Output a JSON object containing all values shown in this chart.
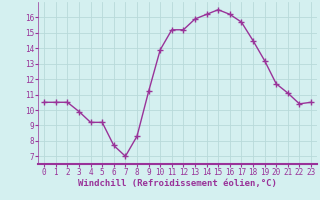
{
  "x": [
    0,
    1,
    2,
    3,
    4,
    5,
    6,
    7,
    8,
    9,
    10,
    11,
    12,
    13,
    14,
    15,
    16,
    17,
    18,
    19,
    20,
    21,
    22,
    23
  ],
  "y": [
    10.5,
    10.5,
    10.5,
    9.9,
    9.2,
    9.2,
    7.7,
    7.0,
    8.3,
    11.2,
    13.9,
    15.2,
    15.2,
    15.9,
    16.2,
    16.5,
    16.2,
    15.7,
    14.5,
    13.2,
    11.7,
    11.1,
    10.4,
    10.5
  ],
  "line_color": "#993399",
  "marker": "+",
  "marker_size": 4,
  "linewidth": 1.0,
  "bg_color": "#d4f0f0",
  "grid_color": "#b8dada",
  "axis_line_color": "#993399",
  "xlabel": "Windchill (Refroidissement éolien,°C)",
  "xlabel_fontsize": 6.5,
  "xlabel_color": "#993399",
  "tick_color": "#993399",
  "tick_fontsize": 5.5,
  "ylim": [
    6.5,
    17.0
  ],
  "yticks": [
    7,
    8,
    9,
    10,
    11,
    12,
    13,
    14,
    15,
    16
  ],
  "xlim": [
    -0.5,
    23.5
  ],
  "xticks": [
    0,
    1,
    2,
    3,
    4,
    5,
    6,
    7,
    8,
    9,
    10,
    11,
    12,
    13,
    14,
    15,
    16,
    17,
    18,
    19,
    20,
    21,
    22,
    23
  ]
}
